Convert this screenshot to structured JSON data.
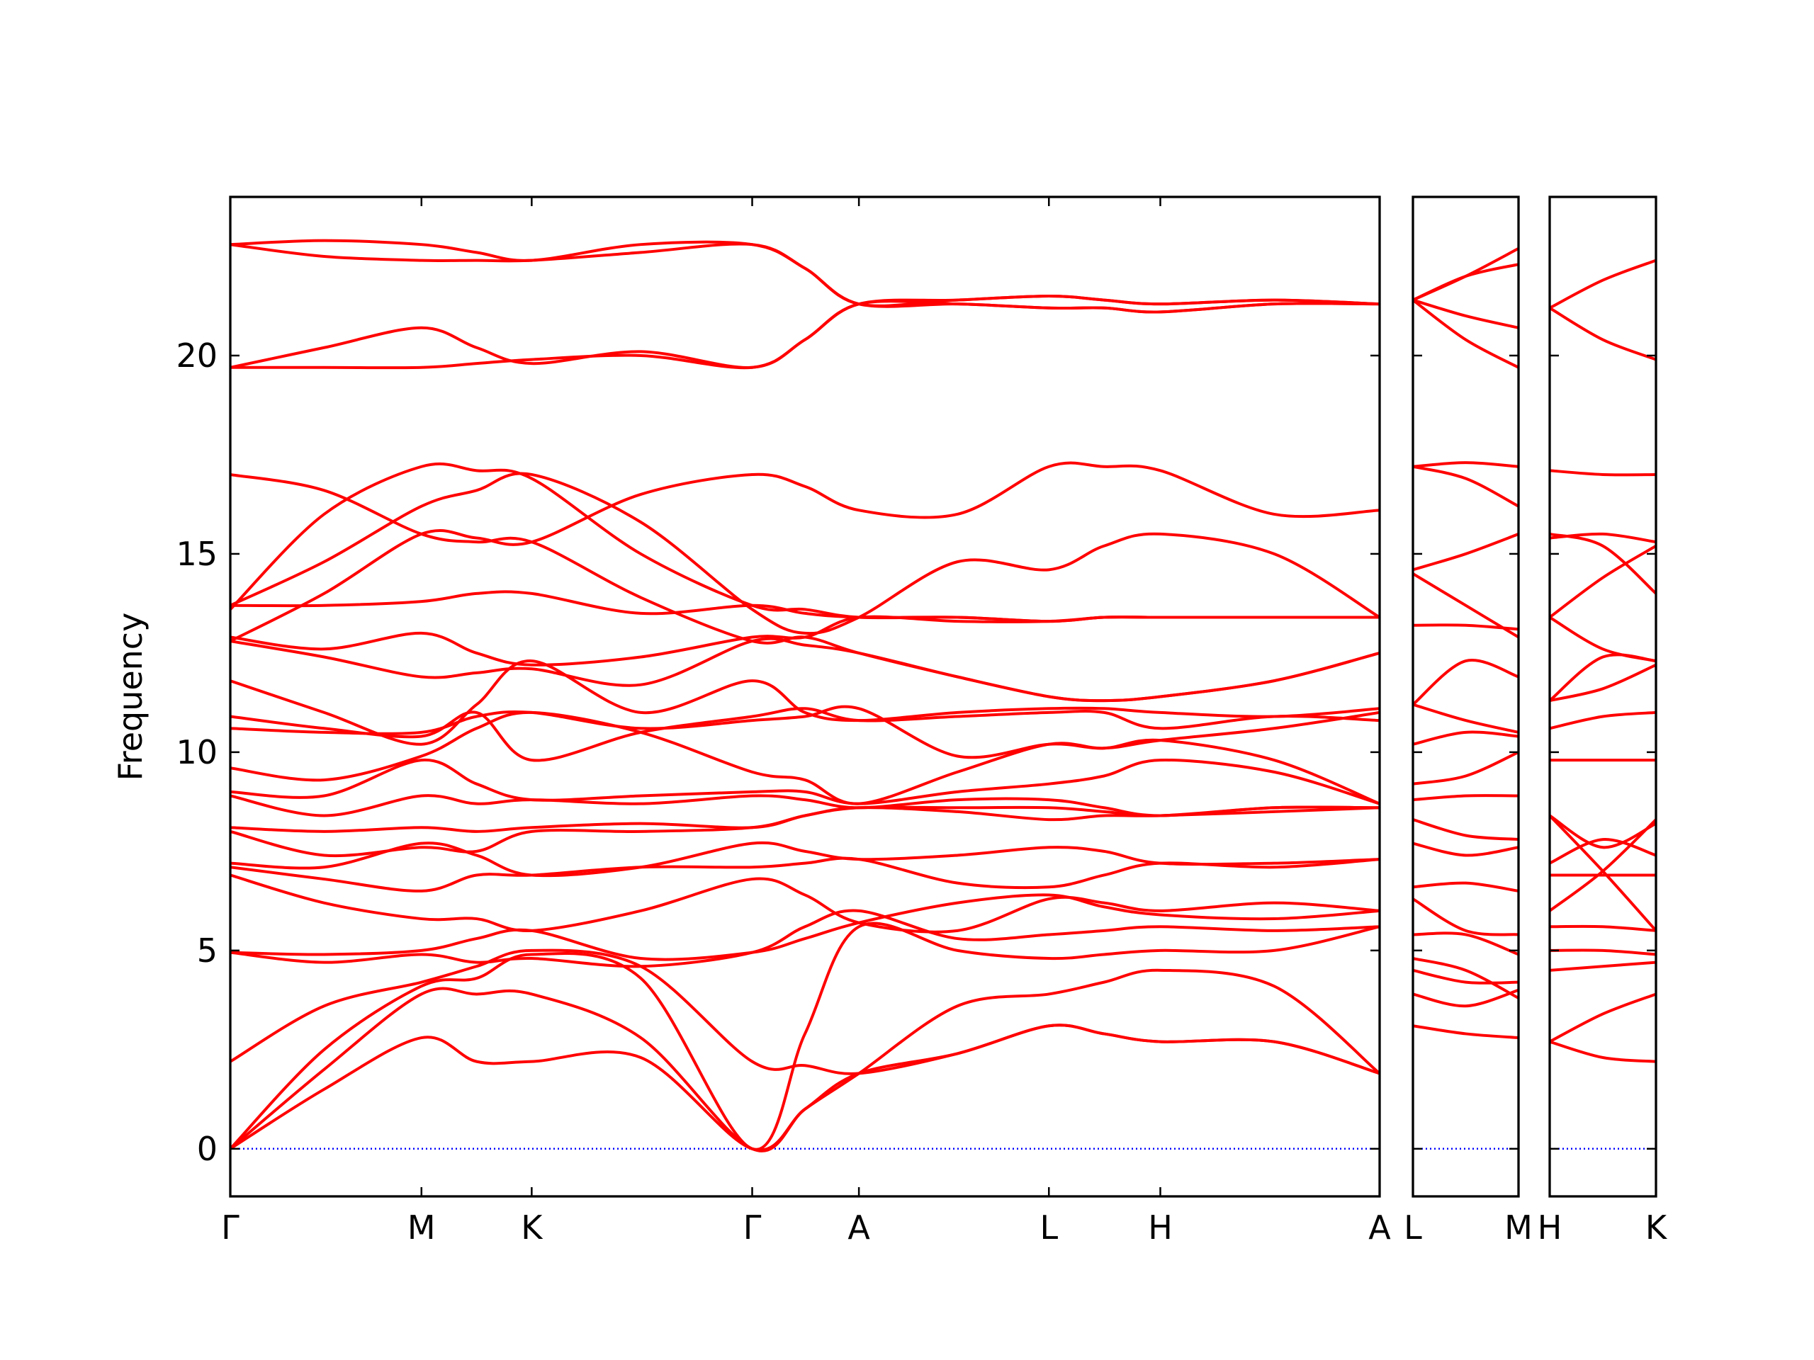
{
  "chart_data": [
    {
      "type": "line",
      "ylabel": "Frequency",
      "line_color": "#ff0000",
      "hlines": [
        {
          "value": 0,
          "color": "#0000ff"
        }
      ],
      "xlim": [
        0,
        9.8
      ],
      "ylim": [
        -1.2,
        24
      ],
      "xticks": [
        {
          "value": 0,
          "label": "Γ"
        },
        {
          "value": 1.63,
          "label": "M"
        },
        {
          "value": 2.57,
          "label": "K"
        },
        {
          "value": 4.45,
          "label": "Γ"
        },
        {
          "value": 5.36,
          "label": "A"
        },
        {
          "value": 6.98,
          "label": "L"
        },
        {
          "value": 7.93,
          "label": "H"
        },
        {
          "value": 9.8,
          "label": "A"
        }
      ],
      "yticks": [
        0,
        5,
        10,
        15,
        20
      ],
      "x": [
        0,
        0.8,
        1.63,
        2.1,
        2.57,
        3.5,
        4.45,
        4.9,
        5.36,
        6.2,
        6.98,
        7.45,
        7.93,
        8.9,
        9.8
      ],
      "series": [
        {
          "values": [
            0,
            1.5,
            2.8,
            2.2,
            2.2,
            2.3,
            0,
            1.0,
            1.9,
            2.4,
            3.1,
            2.9,
            2.7,
            2.7,
            1.9
          ]
        },
        {
          "values": [
            0,
            2.0,
            3.9,
            3.9,
            3.9,
            2.8,
            0,
            1.0,
            1.9,
            3.6,
            3.9,
            4.2,
            4.5,
            4.1,
            1.9
          ]
        },
        {
          "values": [
            0,
            2.5,
            4.1,
            4.3,
            4.9,
            4.3,
            0,
            2.9,
            5.6,
            5.0,
            4.8,
            4.9,
            5.0,
            5.0,
            5.6
          ]
        },
        {
          "values": [
            2.2,
            3.6,
            4.2,
            4.6,
            5.0,
            4.6,
            2.2,
            2.1,
            1.9,
            2.4,
            3.1,
            2.9,
            2.7,
            2.7,
            1.9
          ]
        },
        {
          "values": [
            4.95,
            4.7,
            4.9,
            4.7,
            4.8,
            4.6,
            4.95,
            5.6,
            6.0,
            5.3,
            5.4,
            5.5,
            5.6,
            5.5,
            5.6
          ]
        },
        {
          "values": [
            4.95,
            4.9,
            5.0,
            5.3,
            5.5,
            4.8,
            4.95,
            5.3,
            5.7,
            6.2,
            6.4,
            6.1,
            5.9,
            5.8,
            6.0
          ]
        },
        {
          "values": [
            6.9,
            6.2,
            5.8,
            5.8,
            5.5,
            6.0,
            6.8,
            6.4,
            5.7,
            5.5,
            6.3,
            6.2,
            6.0,
            6.2,
            6.0
          ]
        },
        {
          "values": [
            7.1,
            6.8,
            6.5,
            6.9,
            6.9,
            7.1,
            7.1,
            7.2,
            7.3,
            6.7,
            6.6,
            6.9,
            7.2,
            7.1,
            7.3
          ]
        },
        {
          "values": [
            7.2,
            7.1,
            7.7,
            7.4,
            6.9,
            7.1,
            7.7,
            7.5,
            7.3,
            7.4,
            7.6,
            7.5,
            7.2,
            7.2,
            7.3
          ]
        },
        {
          "values": [
            8.0,
            7.4,
            7.6,
            7.5,
            8.0,
            8.0,
            8.1,
            8.4,
            8.6,
            8.5,
            8.3,
            8.4,
            8.4,
            8.5,
            8.6
          ]
        },
        {
          "values": [
            8.1,
            8.0,
            8.1,
            8.0,
            8.1,
            8.2,
            8.1,
            8.4,
            8.6,
            8.6,
            8.6,
            8.5,
            8.4,
            8.6,
            8.6
          ]
        },
        {
          "values": [
            8.9,
            8.4,
            8.9,
            8.7,
            8.8,
            8.7,
            8.9,
            8.8,
            8.6,
            8.8,
            8.8,
            8.6,
            8.4,
            8.6,
            8.6
          ]
        },
        {
          "values": [
            9.0,
            8.9,
            9.8,
            9.2,
            8.8,
            8.9,
            9.0,
            9.0,
            8.7,
            9.0,
            9.2,
            9.4,
            9.8,
            9.5,
            8.7
          ]
        },
        {
          "values": [
            9.6,
            9.3,
            9.9,
            10.6,
            11.0,
            10.5,
            9.5,
            9.3,
            8.7,
            9.5,
            10.2,
            10.1,
            10.3,
            9.8,
            8.7
          ]
        },
        {
          "values": [
            10.6,
            10.5,
            10.5,
            10.9,
            11.0,
            10.6,
            10.8,
            10.9,
            11.1,
            9.9,
            10.2,
            10.1,
            10.3,
            10.6,
            11.0
          ]
        },
        {
          "values": [
            10.9,
            10.6,
            10.4,
            11.0,
            9.8,
            10.5,
            10.9,
            11.1,
            10.8,
            10.9,
            11.0,
            11.0,
            10.6,
            10.9,
            10.8
          ]
        },
        {
          "values": [
            11.8,
            11.0,
            10.2,
            11.2,
            12.3,
            11.0,
            11.8,
            11.0,
            10.8,
            11.0,
            11.1,
            11.1,
            11.0,
            10.9,
            11.1
          ]
        },
        {
          "values": [
            12.8,
            12.4,
            11.9,
            12.0,
            12.1,
            11.7,
            12.8,
            12.7,
            12.5,
            11.9,
            11.4,
            11.3,
            11.4,
            11.8,
            12.5
          ]
        },
        {
          "values": [
            12.9,
            12.6,
            13.0,
            12.5,
            12.2,
            12.4,
            12.9,
            12.9,
            13.4,
            13.3,
            13.3,
            13.4,
            13.4,
            13.4,
            13.4
          ]
        },
        {
          "values": [
            13.7,
            13.7,
            13.8,
            14.0,
            14.0,
            13.5,
            13.7,
            13.5,
            13.4,
            13.4,
            13.3,
            13.4,
            13.4,
            13.4,
            13.4
          ]
        },
        {
          "values": [
            13.7,
            14.8,
            16.2,
            16.6,
            17.0,
            15.8,
            13.6,
            13.0,
            13.4,
            14.8,
            14.6,
            15.2,
            15.5,
            15.0,
            13.4
          ]
        },
        {
          "values": [
            12.8,
            14.0,
            15.5,
            15.4,
            15.3,
            16.5,
            17.0,
            16.7,
            16.1,
            16.0,
            17.2,
            17.2,
            17.1,
            16.0,
            16.1
          ]
        },
        {
          "values": [
            17.0,
            16.6,
            15.5,
            15.3,
            15.3,
            13.9,
            12.8,
            12.9,
            12.5,
            11.9,
            11.4,
            11.3,
            11.4,
            11.8,
            12.5
          ]
        },
        {
          "values": [
            13.6,
            16.0,
            17.2,
            17.1,
            16.9,
            15.0,
            13.7,
            13.6,
            13.4,
            13.4,
            13.3,
            13.4,
            13.4,
            13.4,
            13.4
          ]
        },
        {
          "values": [
            19.7,
            20.2,
            20.7,
            20.2,
            19.8,
            20.1,
            19.7,
            20.4,
            21.3,
            21.4,
            21.5,
            21.4,
            21.3,
            21.4,
            21.3
          ]
        },
        {
          "values": [
            19.7,
            19.7,
            19.7,
            19.8,
            19.9,
            20.0,
            19.7,
            20.4,
            21.3,
            21.3,
            21.2,
            21.2,
            21.1,
            21.3,
            21.3
          ]
        },
        {
          "values": [
            22.8,
            22.5,
            22.4,
            22.4,
            22.4,
            22.6,
            22.8,
            22.2,
            21.3,
            21.4,
            21.5,
            21.4,
            21.3,
            21.4,
            21.3
          ]
        },
        {
          "values": [
            22.8,
            22.9,
            22.8,
            22.6,
            22.4,
            22.8,
            22.8,
            22.2,
            21.3,
            21.3,
            21.2,
            21.2,
            21.1,
            21.3,
            21.3
          ]
        }
      ]
    },
    {
      "type": "line",
      "line_color": "#ff0000",
      "hlines": [
        {
          "value": 0,
          "color": "#0000ff"
        }
      ],
      "xlim": [
        0,
        0.9
      ],
      "ylim": [
        -1.2,
        24
      ],
      "xticks": [
        {
          "value": 0,
          "label": "L"
        },
        {
          "value": 0.9,
          "label": "M"
        }
      ],
      "yticks": [
        0,
        5,
        10,
        15,
        20
      ],
      "x": [
        0,
        0.45,
        0.9
      ],
      "series": [
        {
          "values": [
            3.1,
            2.9,
            2.8
          ]
        },
        {
          "values": [
            3.9,
            3.6,
            4.0
          ]
        },
        {
          "values": [
            4.5,
            4.2,
            4.2
          ]
        },
        {
          "values": [
            4.8,
            4.5,
            3.8
          ]
        },
        {
          "values": [
            5.4,
            5.4,
            4.9
          ]
        },
        {
          "values": [
            6.3,
            5.5,
            5.4
          ]
        },
        {
          "values": [
            6.6,
            6.7,
            6.5
          ]
        },
        {
          "values": [
            7.7,
            7.4,
            7.6
          ]
        },
        {
          "values": [
            8.3,
            7.9,
            7.8
          ]
        },
        {
          "values": [
            8.8,
            8.9,
            8.9
          ]
        },
        {
          "values": [
            9.2,
            9.4,
            10.0
          ]
        },
        {
          "values": [
            10.2,
            10.5,
            10.4
          ]
        },
        {
          "values": [
            11.2,
            10.8,
            10.5
          ]
        },
        {
          "values": [
            11.2,
            12.3,
            11.9
          ]
        },
        {
          "values": [
            13.2,
            13.2,
            13.1
          ]
        },
        {
          "values": [
            14.5,
            13.7,
            12.9
          ]
        },
        {
          "values": [
            14.6,
            15.0,
            15.5
          ]
        },
        {
          "values": [
            17.2,
            16.9,
            16.2
          ]
        },
        {
          "values": [
            17.2,
            17.3,
            17.2
          ]
        },
        {
          "values": [
            21.4,
            22.0,
            22.7
          ]
        },
        {
          "values": [
            21.4,
            21.0,
            20.7
          ]
        },
        {
          "values": [
            21.4,
            20.4,
            19.7
          ]
        },
        {
          "values": [
            21.4,
            22.0,
            22.3
          ]
        }
      ]
    },
    {
      "type": "line",
      "line_color": "#ff0000",
      "hlines": [
        {
          "value": 0,
          "color": "#0000ff"
        }
      ],
      "xlim": [
        0,
        0.9
      ],
      "ylim": [
        -1.2,
        24
      ],
      "xticks": [
        {
          "value": 0,
          "label": "H"
        },
        {
          "value": 0.9,
          "label": "K"
        }
      ],
      "yticks": [
        0,
        5,
        10,
        15,
        20
      ],
      "x": [
        0,
        0.45,
        0.9
      ],
      "series": [
        {
          "values": [
            2.7,
            2.3,
            2.2
          ]
        },
        {
          "values": [
            2.7,
            3.4,
            3.9
          ]
        },
        {
          "values": [
            4.5,
            4.6,
            4.7
          ]
        },
        {
          "values": [
            5.0,
            5.0,
            4.9
          ]
        },
        {
          "values": [
            5.6,
            5.6,
            5.5
          ]
        },
        {
          "values": [
            6.0,
            7.0,
            8.3
          ]
        },
        {
          "values": [
            6.9,
            6.9,
            6.9
          ]
        },
        {
          "values": [
            7.2,
            7.8,
            7.4
          ]
        },
        {
          "values": [
            8.4,
            7.6,
            8.2
          ]
        },
        {
          "values": [
            8.4,
            7.0,
            5.5
          ]
        },
        {
          "values": [
            9.8,
            9.8,
            9.8
          ]
        },
        {
          "values": [
            10.6,
            10.9,
            11.0
          ]
        },
        {
          "values": [
            11.3,
            11.6,
            12.2
          ]
        },
        {
          "values": [
            11.3,
            12.4,
            12.3
          ]
        },
        {
          "values": [
            13.4,
            14.4,
            15.2
          ]
        },
        {
          "values": [
            13.4,
            12.6,
            12.3
          ]
        },
        {
          "values": [
            15.5,
            15.2,
            14.0
          ]
        },
        {
          "values": [
            15.4,
            15.5,
            15.3
          ]
        },
        {
          "values": [
            17.1,
            17.0,
            17.0
          ]
        },
        {
          "values": [
            21.2,
            21.9,
            22.4
          ]
        },
        {
          "values": [
            21.2,
            20.4,
            19.9
          ]
        }
      ]
    }
  ]
}
